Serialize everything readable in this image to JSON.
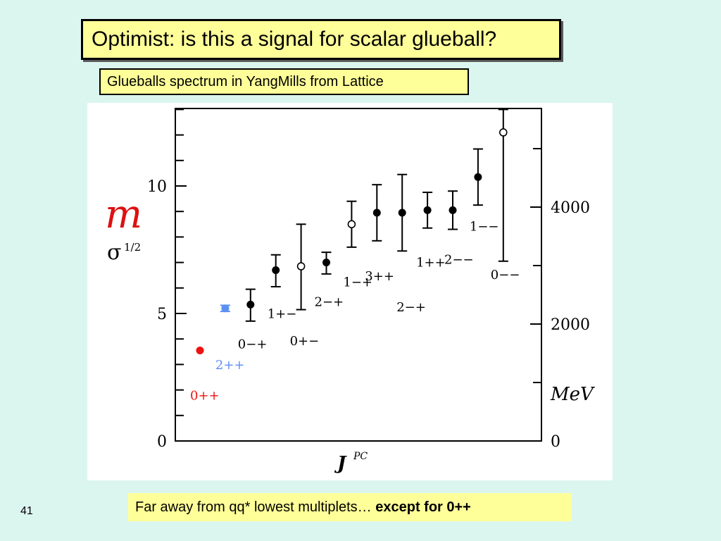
{
  "slide": {
    "title": "Optimist: is this a signal for scalar glueball?",
    "subtitle": "Glueballs spectrum in YangMills from Lattice",
    "footer_text": "Far away from qq* lowest multiplets… ",
    "footer_bold": "except for 0++",
    "slide_number": "41"
  },
  "chart_data": {
    "type": "scatter",
    "xlabel_main": "J",
    "xlabel_sup": "PC",
    "ylabel_main": "m",
    "ylabel_denom": "σ",
    "ylabel_denom_sup": "1/2",
    "left_axis": {
      "ylim": [
        0,
        13
      ],
      "ticks": [
        "0",
        "5",
        "10"
      ]
    },
    "right_axis": {
      "unit": "MeV",
      "ticks": [
        "0",
        "2000",
        "4000"
      ]
    },
    "colors": {
      "red": "#ee1111",
      "blue": "#5b8ff2",
      "black": "#000000"
    },
    "states": [
      {
        "label": "0++",
        "x": 1.0,
        "y": 3.55,
        "err_lo": 0.0,
        "err_hi": 0.0,
        "marker": "filled",
        "color": "red",
        "label_pos": "below"
      },
      {
        "label": "2++",
        "x": 2.0,
        "y": 5.2,
        "err_lo": 0.12,
        "err_hi": 0.12,
        "marker": "filled",
        "color": "blue",
        "label_pos": "below"
      },
      {
        "label": "0−+",
        "x": 3.0,
        "y": 5.35,
        "err_lo": 0.65,
        "err_hi": 0.6,
        "marker": "filled",
        "color": "black",
        "label_pos": "below"
      },
      {
        "label": "1+−",
        "x": 4.0,
        "y": 6.7,
        "err_lo": 0.65,
        "err_hi": 0.6,
        "marker": "filled",
        "color": "black",
        "label_pos": "below"
      },
      {
        "label": "0+−",
        "x": 5.0,
        "y": 6.85,
        "err_lo": 1.7,
        "err_hi": 1.65,
        "marker": "open",
        "color": "black",
        "label_pos": "below"
      },
      {
        "label": "2−+",
        "x": 6.0,
        "y": 7.0,
        "err_lo": 0.45,
        "err_hi": 0.4,
        "marker": "filled",
        "color": "black",
        "label_pos": "below"
      },
      {
        "label": "1−+",
        "x": 7.0,
        "y": 8.5,
        "err_lo": 0.9,
        "err_hi": 0.9,
        "marker": "open",
        "color": "black",
        "label_pos": "below"
      },
      {
        "label": "3++",
        "x": 8.0,
        "y": 8.95,
        "err_lo": 1.1,
        "err_hi": 1.1,
        "marker": "filled",
        "color": "black",
        "label_pos": "below"
      },
      {
        "label": "2−+",
        "x": 9.0,
        "y": 8.95,
        "err_lo": 1.5,
        "err_hi": 1.5,
        "marker": "filled",
        "color": "black",
        "label_pos": "below"
      },
      {
        "label": "1++",
        "x": 10.0,
        "y": 9.05,
        "err_lo": 0.7,
        "err_hi": 0.7,
        "marker": "filled",
        "color": "black",
        "label_pos": "below"
      },
      {
        "label": "2−−",
        "x": 11.0,
        "y": 9.05,
        "err_lo": 0.75,
        "err_hi": 0.75,
        "marker": "filled",
        "color": "black",
        "label_pos": "below"
      },
      {
        "label": "1−−",
        "x": 12.0,
        "y": 10.35,
        "err_lo": 1.1,
        "err_hi": 1.1,
        "marker": "filled",
        "color": "black",
        "label_pos": "below"
      },
      {
        "label": "0−−",
        "x": 13.0,
        "y": 12.1,
        "err_lo": 5.05,
        "err_hi": 0.9,
        "marker": "open",
        "color": "black",
        "label_pos": "below"
      }
    ]
  }
}
